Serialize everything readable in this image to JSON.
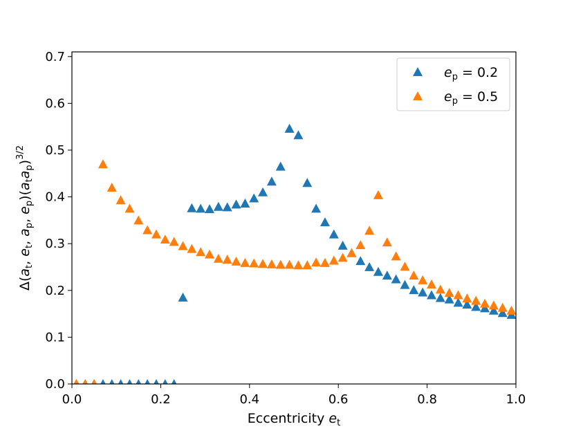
{
  "chart_data": {
    "type": "scatter",
    "title": "",
    "xlabel": "Eccentricity e_t",
    "ylabel": "Δ(a_t, e_t, a_p, e_p)(a_t a_p)^(3/2)",
    "xlim": [
      0.0,
      1.0
    ],
    "ylim": [
      0.0,
      0.71
    ],
    "xticks": [
      "0.0",
      "0.2",
      "0.4",
      "0.6",
      "0.8",
      "1.0"
    ],
    "yticks": [
      "0.0",
      "0.1",
      "0.2",
      "0.3",
      "0.4",
      "0.5",
      "0.6",
      "0.7"
    ],
    "grid": false,
    "legend_position": "top-right",
    "legend": [
      "e_p = 0.2",
      "e_p = 0.5"
    ],
    "series": [
      {
        "name": "e_p = 0.2",
        "color": "#1f77b4",
        "marker": "triangle",
        "x": [
          0.01,
          0.03,
          0.05,
          0.07,
          0.09,
          0.11,
          0.13,
          0.15,
          0.17,
          0.19,
          0.21,
          0.23,
          0.25,
          0.27,
          0.29,
          0.31,
          0.33,
          0.35,
          0.37,
          0.39,
          0.41,
          0.43,
          0.45,
          0.47,
          0.49,
          0.51,
          0.53,
          0.55,
          0.57,
          0.59,
          0.61,
          0.63,
          0.65,
          0.67,
          0.69,
          0.71,
          0.73,
          0.75,
          0.77,
          0.79,
          0.81,
          0.83,
          0.85,
          0.87,
          0.89,
          0.91,
          0.93,
          0.95,
          0.97,
          0.99
        ],
        "y": [
          0.0,
          0.0,
          0.0,
          0.0,
          0.0,
          0.0,
          0.0,
          0.0,
          0.0,
          0.0,
          0.0,
          0.0,
          0.185,
          0.376,
          0.375,
          0.374,
          0.379,
          0.378,
          0.384,
          0.386,
          0.397,
          0.41,
          0.433,
          0.465,
          0.546,
          0.532,
          0.43,
          0.375,
          0.346,
          0.32,
          0.296,
          0.28,
          0.263,
          0.25,
          0.24,
          0.232,
          0.224,
          0.212,
          0.201,
          0.196,
          0.19,
          0.184,
          0.181,
          0.174,
          0.17,
          0.165,
          0.162,
          0.157,
          0.152,
          0.148
        ]
      },
      {
        "name": "e_p = 0.5",
        "color": "#ff7f0e",
        "marker": "triangle",
        "x": [
          0.01,
          0.03,
          0.05,
          0.07,
          0.09,
          0.11,
          0.13,
          0.15,
          0.17,
          0.19,
          0.21,
          0.23,
          0.25,
          0.27,
          0.29,
          0.31,
          0.33,
          0.35,
          0.37,
          0.39,
          0.41,
          0.43,
          0.45,
          0.47,
          0.49,
          0.51,
          0.53,
          0.55,
          0.57,
          0.59,
          0.61,
          0.63,
          0.65,
          0.67,
          0.69,
          0.71,
          0.73,
          0.75,
          0.77,
          0.79,
          0.81,
          0.83,
          0.85,
          0.87,
          0.89,
          0.91,
          0.93,
          0.95,
          0.97,
          0.99
        ],
        "y": [
          0.0,
          0.0,
          0.0,
          0.47,
          0.42,
          0.393,
          0.375,
          0.35,
          0.329,
          0.32,
          0.309,
          0.304,
          0.295,
          0.289,
          0.282,
          0.277,
          0.268,
          0.266,
          0.262,
          0.259,
          0.258,
          0.257,
          0.256,
          0.255,
          0.255,
          0.254,
          0.254,
          0.26,
          0.259,
          0.264,
          0.27,
          0.28,
          0.297,
          0.328,
          0.404,
          0.303,
          0.273,
          0.251,
          0.232,
          0.222,
          0.213,
          0.202,
          0.195,
          0.19,
          0.183,
          0.178,
          0.172,
          0.168,
          0.163,
          0.157
        ]
      }
    ]
  }
}
